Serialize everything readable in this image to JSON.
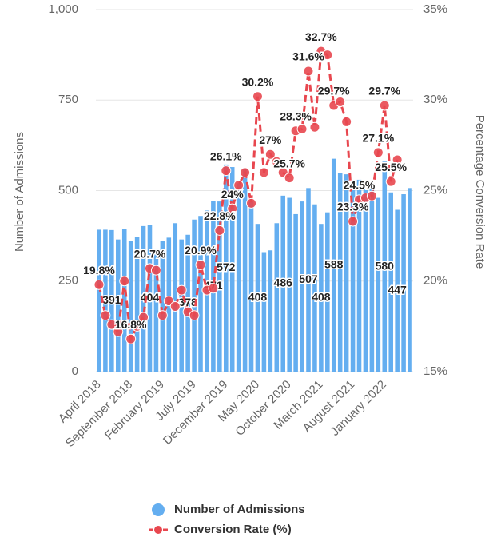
{
  "chart_data": {
    "type": "bar-line",
    "categories": [
      "April 2018",
      null,
      null,
      null,
      null,
      "September 2018",
      null,
      null,
      null,
      null,
      "February 2019",
      null,
      null,
      null,
      null,
      "July 2019",
      null,
      null,
      null,
      null,
      "December 2019",
      null,
      null,
      null,
      null,
      "May 2020",
      null,
      null,
      null,
      null,
      "October 2020",
      null,
      null,
      null,
      null,
      "March 2021",
      null,
      null,
      null,
      null,
      "August 2021",
      null,
      null,
      null,
      null,
      "January 2022",
      null,
      null,
      null,
      null
    ],
    "y_label": "Number of Admissions",
    "y2_label": "Percentage Conversion Rate",
    "ylim": [
      0,
      1000
    ],
    "yticks": [
      0,
      250,
      500,
      750,
      {
        "value": 1000,
        "label": "1,000"
      }
    ],
    "y2lim": [
      15,
      35
    ],
    "y2ticks": [
      {
        "value": 15,
        "label": "15%"
      },
      {
        "value": 20,
        "label": "20%"
      },
      {
        "value": 25,
        "label": "25%"
      },
      {
        "value": 30,
        "label": "30%"
      },
      {
        "value": 35,
        "label": "35%"
      }
    ],
    "grid": true,
    "legend": "bottom",
    "series": [
      {
        "name": "Number of Admissions",
        "type": "bar",
        "color": "#64aef0",
        "values": [
          392,
          392,
          391,
          365,
          395,
          360,
          372,
          402,
          404,
          340,
          360,
          370,
          410,
          365,
          378,
          420,
          430,
          445,
          471,
          470,
          572,
          565,
          520,
          560,
          470,
          408,
          330,
          335,
          410,
          486,
          480,
          435,
          470,
          507,
          462,
          408,
          440,
          588,
          548,
          545,
          510,
          530,
          505,
          520,
          480,
          580,
          495,
          447,
          490,
          507
        ]
      },
      {
        "name": "Conversion Rate (%)",
        "type": "line",
        "axis": "y2",
        "color": "#e8474f",
        "values": [
          19.8,
          18.1,
          17.6,
          17.2,
          20.0,
          16.8,
          17.5,
          18.0,
          20.7,
          20.6,
          18.1,
          18.9,
          18.6,
          19.5,
          18.3,
          18.1,
          20.9,
          19.5,
          19.6,
          22.8,
          26.1,
          24.0,
          25.3,
          26.0,
          24.3,
          30.2,
          26.0,
          27.0,
          26.6,
          26.0,
          25.7,
          28.3,
          28.4,
          31.6,
          28.5,
          32.7,
          32.5,
          29.7,
          29.9,
          28.8,
          23.3,
          24.5,
          24.6,
          24.7,
          27.1,
          29.7,
          25.5,
          26.7,
          null,
          null
        ],
        "value_labels": [
          "19.8%",
          null,
          null,
          null,
          null,
          "16.8%",
          null,
          null,
          "20.7%",
          null,
          null,
          null,
          null,
          null,
          null,
          null,
          "20.9%",
          null,
          null,
          "22.8%",
          "26.1%",
          "24%",
          null,
          null,
          null,
          "30.2%",
          null,
          "27%",
          null,
          null,
          "25.7%",
          "28.3%",
          null,
          "31.6%",
          null,
          "32.7%",
          null,
          "29.7%",
          null,
          null,
          "23.3%",
          "24.5%",
          null,
          null,
          "27.1%",
          "29.7%",
          "25.5%",
          null,
          null,
          null
        ]
      }
    ]
  }
}
